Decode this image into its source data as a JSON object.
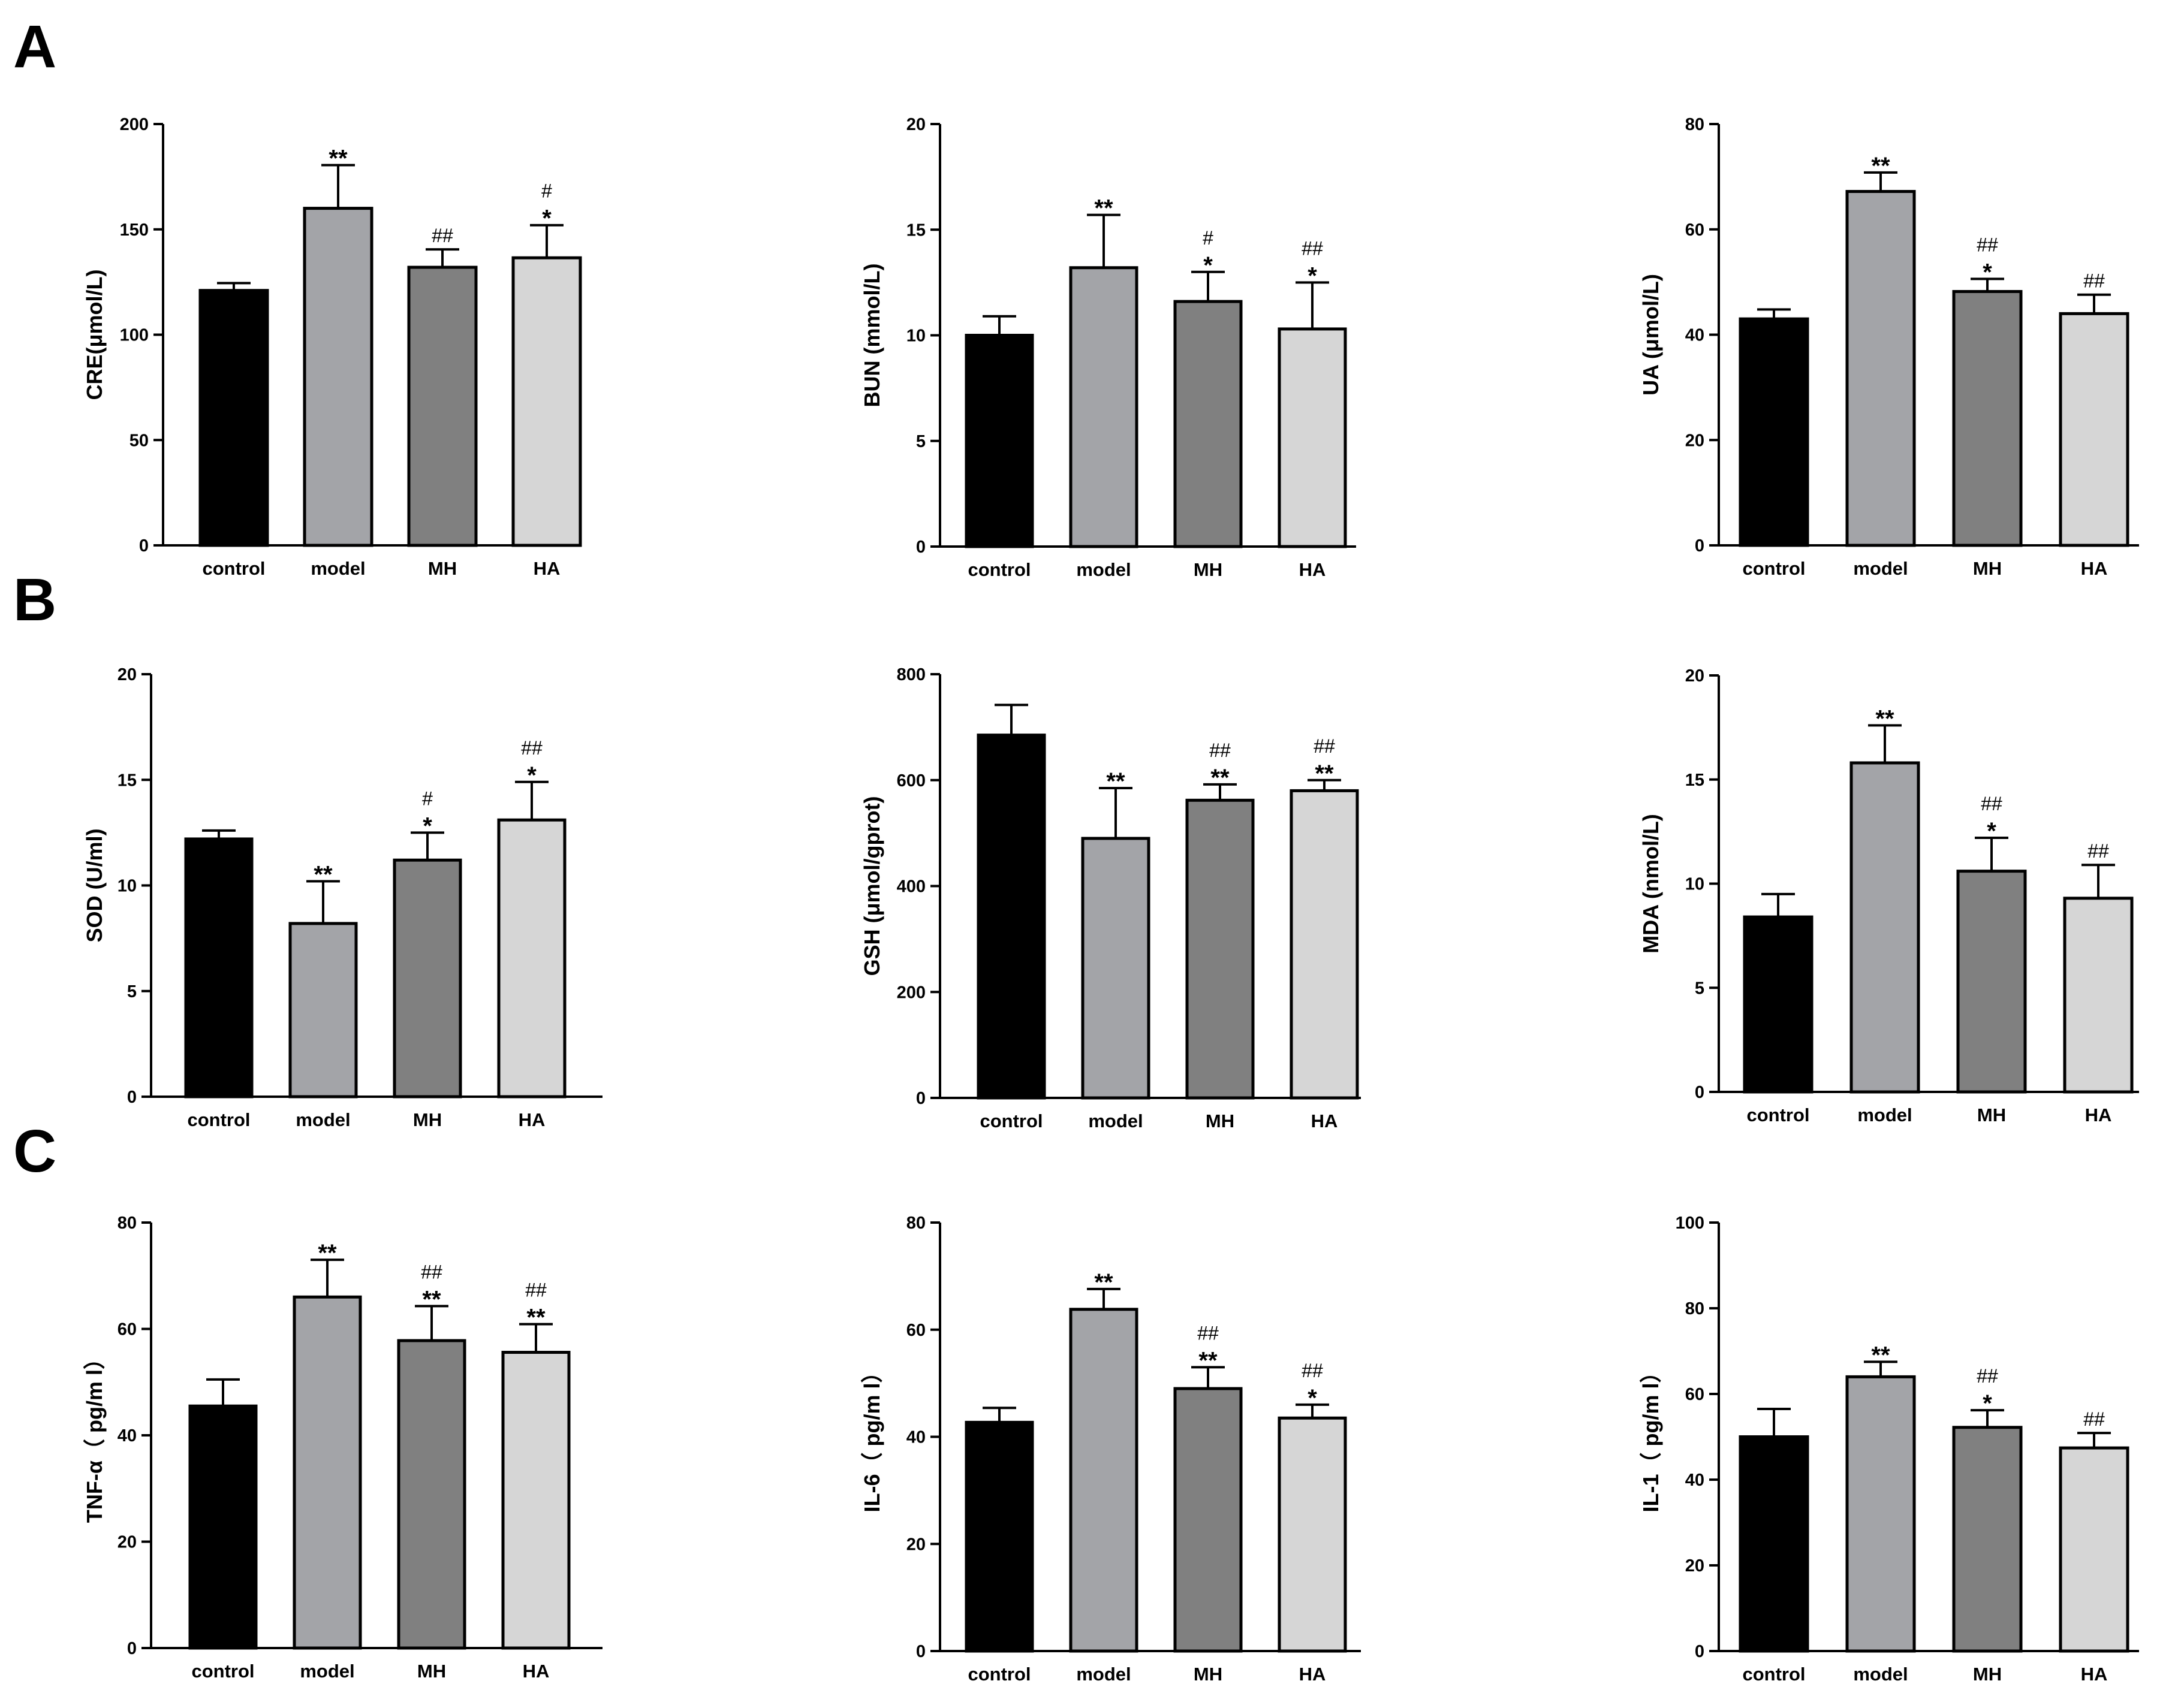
{
  "panel_letters": [
    "A",
    "B",
    "C"
  ],
  "colors": {
    "control": "#000000",
    "model": "#a3a4a8",
    "MH": "#808080",
    "HA": "#d6d6d6",
    "axis": "#000000"
  },
  "chart_data": [
    {
      "type": "bar",
      "title": "",
      "ylabel": "CRE(μmol/L)",
      "xlabel": "",
      "categories": [
        "control",
        "model",
        "MH",
        "HA"
      ],
      "values": [
        121,
        160,
        132,
        136.5
      ],
      "errors": [
        3.5,
        20.5,
        8.5,
        15.5
      ],
      "ylim": [
        0,
        200
      ],
      "yticks": [
        0,
        50,
        100,
        150,
        200
      ],
      "tick_labels": [
        "0",
        "50",
        "100",
        "150",
        "200"
      ],
      "annotations": [
        [
          "",
          ""
        ],
        [
          "",
          "**"
        ],
        [
          "##",
          ""
        ],
        [
          "#",
          "*"
        ]
      ]
    },
    {
      "type": "bar",
      "title": "",
      "ylabel": "BUN (mmol/L)",
      "xlabel": "",
      "categories": [
        "control",
        "model",
        "MH",
        "HA"
      ],
      "values": [
        10,
        13.2,
        11.6,
        10.3
      ],
      "errors": [
        0.9,
        2.5,
        1.4,
        2.2
      ],
      "ylim": [
        0,
        20
      ],
      "yticks": [
        0,
        5,
        10,
        15,
        20
      ],
      "tick_labels": [
        "0",
        "5",
        "10",
        "15",
        "20"
      ],
      "annotations": [
        [
          "",
          ""
        ],
        [
          "",
          "**"
        ],
        [
          "#",
          "*"
        ],
        [
          "##",
          "*"
        ]
      ]
    },
    {
      "type": "bar",
      "title": "",
      "ylabel": "UA (μmol/L)",
      "xlabel": "",
      "categories": [
        "control",
        "model",
        "MH",
        "HA"
      ],
      "values": [
        43,
        67.2,
        48.2,
        44
      ],
      "errors": [
        1.8,
        3.6,
        2.4,
        3.6
      ],
      "ylim": [
        0,
        80
      ],
      "yticks": [
        0,
        20,
        40,
        60,
        80
      ],
      "tick_labels": [
        "0",
        "20",
        "40",
        "60",
        "80"
      ],
      "annotations": [
        [
          "",
          ""
        ],
        [
          "",
          "**"
        ],
        [
          "##",
          "*"
        ],
        [
          "##",
          ""
        ]
      ]
    },
    {
      "type": "bar",
      "title": "",
      "ylabel": "SOD (U/ml)",
      "xlabel": "",
      "categories": [
        "control",
        "model",
        "MH",
        "HA"
      ],
      "values": [
        12.2,
        8.2,
        11.2,
        13.1
      ],
      "errors": [
        0.4,
        2.0,
        1.3,
        1.8
      ],
      "ylim": [
        0,
        20
      ],
      "yticks": [
        0,
        5,
        10,
        15,
        20
      ],
      "tick_labels": [
        "0",
        "5",
        "10",
        "15",
        "20"
      ],
      "annotations": [
        [
          "",
          ""
        ],
        [
          "",
          "**"
        ],
        [
          "#",
          "*"
        ],
        [
          "##",
          "*"
        ]
      ]
    },
    {
      "type": "bar",
      "title": "",
      "ylabel": "GSH (μmol/gprot)",
      "xlabel": "",
      "categories": [
        "control",
        "model",
        "MH",
        "HA"
      ],
      "values": [
        685,
        490,
        562,
        580
      ],
      "errors": [
        57,
        95,
        30,
        20
      ],
      "ylim": [
        0,
        800
      ],
      "yticks": [
        0,
        200,
        400,
        600,
        800
      ],
      "tick_labels": [
        "0",
        "200",
        "400",
        "600",
        "800"
      ],
      "annotations": [
        [
          "",
          ""
        ],
        [
          "",
          "**"
        ],
        [
          "##",
          "**"
        ],
        [
          "##",
          "**"
        ]
      ]
    },
    {
      "type": "bar",
      "title": "",
      "ylabel": "MDA (nmol/L)",
      "xlabel": "",
      "categories": [
        "control",
        "model",
        "MH",
        "HA"
      ],
      "values": [
        8.4,
        15.8,
        10.6,
        9.3
      ],
      "errors": [
        1.1,
        1.8,
        1.6,
        1.6
      ],
      "ylim": [
        0,
        20
      ],
      "yticks": [
        0,
        5,
        10,
        15,
        20
      ],
      "tick_labels": [
        "0",
        "5",
        "10",
        "15",
        "20"
      ],
      "annotations": [
        [
          "",
          ""
        ],
        [
          "",
          "**"
        ],
        [
          "##",
          "*"
        ],
        [
          "##",
          ""
        ]
      ]
    },
    {
      "type": "bar",
      "title": "",
      "ylabel": "TNF-α（ pg/m l）",
      "xlabel": "",
      "categories": [
        "control",
        "model",
        "MH",
        "HA"
      ],
      "values": [
        45.5,
        66,
        57.8,
        55.6
      ],
      "errors": [
        5,
        7,
        6.5,
        5.3
      ],
      "ylim": [
        0,
        80
      ],
      "yticks": [
        0,
        20,
        40,
        60,
        80
      ],
      "tick_labels": [
        "0",
        "20",
        "40",
        "60",
        "80"
      ],
      "annotations": [
        [
          "",
          ""
        ],
        [
          "",
          "**"
        ],
        [
          "##",
          "**"
        ],
        [
          "##",
          "**"
        ]
      ]
    },
    {
      "type": "bar",
      "title": "",
      "ylabel": "IL-6（ pg/m l）",
      "xlabel": "",
      "categories": [
        "control",
        "model",
        "MH",
        "HA"
      ],
      "values": [
        42.7,
        63.8,
        49,
        43.5
      ],
      "errors": [
        2.7,
        3.8,
        4,
        2.5
      ],
      "ylim": [
        0,
        80
      ],
      "yticks": [
        0,
        20,
        40,
        60,
        80
      ],
      "tick_labels": [
        "0",
        "20",
        "40",
        "60",
        "80"
      ],
      "annotations": [
        [
          "",
          ""
        ],
        [
          "",
          "**"
        ],
        [
          "##",
          "**"
        ],
        [
          "##",
          "*"
        ]
      ]
    },
    {
      "type": "bar",
      "title": "",
      "ylabel": "IL-1（ pg/m l）",
      "xlabel": "",
      "categories": [
        "control",
        "model",
        "MH",
        "HA"
      ],
      "values": [
        50,
        64,
        52.2,
        47.4
      ],
      "errors": [
        6.5,
        3.5,
        4,
        3.5
      ],
      "ylim": [
        0,
        100
      ],
      "yticks": [
        0,
        20,
        40,
        60,
        80,
        100
      ],
      "tick_labels": [
        "0",
        "20",
        "40",
        "60",
        "80",
        "100"
      ],
      "annotations": [
        [
          "",
          ""
        ],
        [
          "",
          "**"
        ],
        [
          "##",
          "*"
        ],
        [
          "##",
          ""
        ]
      ]
    }
  ]
}
